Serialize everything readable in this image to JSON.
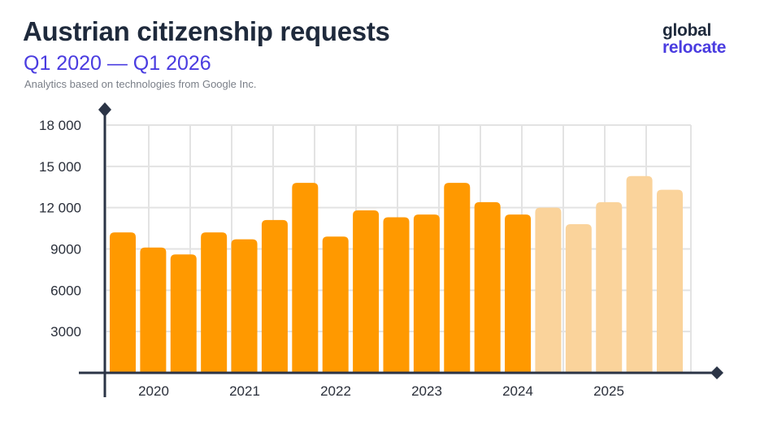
{
  "header": {
    "title": "Austrian citizenship requests",
    "subtitle": "Q1 2020 — Q1 2026",
    "source": "Analytics based on technologies from Google Inc."
  },
  "logo": {
    "line1": "global",
    "line2": "relocate"
  },
  "colors": {
    "actual_bar": "#ff9900",
    "forecast_bar": "#fad39b",
    "axis": "#2b3446",
    "grid": "#e3e3e3"
  },
  "chart_data": {
    "type": "bar",
    "title": "Austrian citizenship requests",
    "subtitle": "Q1 2020 — Q1 2026",
    "ylim": [
      0,
      18000
    ],
    "yticks": [
      3000,
      6000,
      9000,
      12000,
      15000,
      18000
    ],
    "ytick_labels": [
      "3000",
      "6000",
      "9000",
      "12 000",
      "15 000",
      "18 000"
    ],
    "x_year_labels": [
      "2020",
      "2021",
      "2022",
      "2023",
      "2024",
      "2025"
    ],
    "grid": true,
    "series": [
      {
        "values": [
          10200,
          9100,
          8600,
          10200,
          9700,
          11100,
          13800,
          9900,
          11800,
          11300,
          11500,
          13800,
          12400,
          11500
        ],
        "style": "actual"
      },
      {
        "values": [
          12000,
          10800,
          12400,
          14300,
          13300
        ],
        "style": "lighter"
      }
    ]
  }
}
